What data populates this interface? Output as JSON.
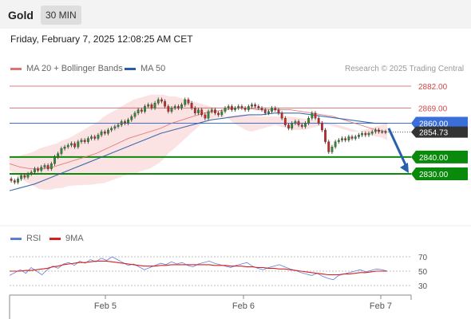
{
  "header": {
    "symbol": "Gold",
    "interval": "30 MIN"
  },
  "timestamp": "Friday, February 7, 2025 12:08:25 AM CET",
  "legend": {
    "ma20_label": "MA 20 + Bollinger Bands",
    "ma50_label": "MA 50",
    "rsi_label": "RSI",
    "ma9_label": "9MA"
  },
  "credit": "Research © 2025 Trading Central",
  "colors": {
    "ma20": "#e07272",
    "ma50": "#2b5aa8",
    "rsi": "#5b7fd6",
    "rsi_ma": "#d62020",
    "bullish": "#2e8b2e",
    "bearish": "#c62828",
    "support": "#0a8a0a",
    "resistance": "#d04848",
    "pivot": "#3a6ed8",
    "arrow": "#2a5fae"
  },
  "chart_data": [
    {
      "type": "candlestick",
      "x_ticks": [
        "Feb 5",
        "Feb 6",
        "Feb 7"
      ],
      "ylim": [
        2820,
        2890
      ],
      "current_price": "2854.73",
      "levels": [
        {
          "value": 2882.0,
          "label": "2882.00",
          "kind": "resistance"
        },
        {
          "value": 2869.0,
          "label": "2869.00",
          "kind": "resistance"
        },
        {
          "value": 2860.0,
          "label": "2860.00",
          "kind": "pivot"
        },
        {
          "value": 2840.0,
          "label": "2840.00",
          "kind": "support"
        },
        {
          "value": 2830.0,
          "label": "2830.00",
          "kind": "support"
        }
      ],
      "closes": [
        2826,
        2825,
        2827,
        2829,
        2828,
        2830,
        2831,
        2833,
        2832,
        2834,
        2835,
        2833,
        2836,
        2840,
        2842,
        2845,
        2846,
        2847,
        2848,
        2846,
        2849,
        2850,
        2849,
        2851,
        2852,
        2851,
        2853,
        2855,
        2854,
        2856,
        2857,
        2858,
        2859,
        2861,
        2860,
        2862,
        2864,
        2866,
        2868,
        2867,
        2870,
        2871,
        2869,
        2872,
        2874,
        2873,
        2870,
        2867,
        2869,
        2870,
        2869,
        2871,
        2874,
        2872,
        2869,
        2866,
        2868,
        2865,
        2863,
        2867,
        2868,
        2866,
        2865,
        2867,
        2869,
        2870,
        2868,
        2869,
        2870,
        2869,
        2868,
        2870,
        2871,
        2870,
        2869,
        2868,
        2866,
        2867,
        2869,
        2868,
        2866,
        2863,
        2859,
        2857,
        2860,
        2861,
        2859,
        2858,
        2860,
        2863,
        2866,
        2863,
        2860,
        2856,
        2849,
        2843,
        2846,
        2849,
        2850,
        2851,
        2850,
        2852,
        2851,
        2852,
        2853,
        2854,
        2853,
        2854,
        2855,
        2856,
        2855,
        2855,
        2854.73
      ],
      "bb_upper": [
        2840,
        2840,
        2841,
        2842,
        2843,
        2845,
        2846,
        2847,
        2848,
        2850,
        2851,
        2853,
        2855,
        2857,
        2859,
        2861,
        2864,
        2866,
        2868,
        2870,
        2872,
        2874,
        2875,
        2876,
        2877,
        2877,
        2877,
        2876,
        2876,
        2875,
        2874,
        2873,
        2872,
        2871,
        2870,
        2868,
        2866,
        2863,
        2860,
        2858,
        2856,
        2855,
        2856,
        2857,
        2858,
        2859,
        2858,
        2857,
        2856,
        2856,
        2856,
        2857,
        2858,
        2859,
        2859,
        2858,
        2857,
        2856,
        2855,
        2855,
        2856,
        2857,
        2858,
        2859,
        2860
      ],
      "series": [
        {
          "name": "MA 20",
          "values": [
            2836,
            2834,
            2833,
            2833,
            2834,
            2836,
            2838,
            2840,
            2842,
            2845,
            2848,
            2851,
            2853,
            2855,
            2857,
            2860,
            2862,
            2864,
            2866,
            2867,
            2868,
            2869,
            2869,
            2868,
            2868,
            2868,
            2868,
            2867,
            2866,
            2865,
            2864,
            2862,
            2860,
            2858,
            2856,
            2855
          ]
        },
        {
          "name": "MA 50",
          "values": [
            2820,
            2822,
            2824,
            2827,
            2830,
            2833,
            2836,
            2839,
            2842,
            2845,
            2848,
            2851,
            2854,
            2856,
            2858,
            2860,
            2862,
            2863,
            2864,
            2865,
            2865,
            2866,
            2866,
            2866,
            2865,
            2864,
            2863,
            2862,
            2861,
            2860,
            2860
          ]
        }
      ]
    },
    {
      "type": "line",
      "y_ticks": [
        70,
        50,
        30
      ],
      "ylim": [
        20,
        80
      ],
      "series": [
        {
          "name": "RSI",
          "values": [
            44,
            48,
            52,
            47,
            55,
            50,
            45,
            52,
            57,
            54,
            60,
            62,
            58,
            64,
            61,
            66,
            63,
            68,
            65,
            70,
            66,
            62,
            58,
            60,
            56,
            52,
            55,
            58,
            61,
            59,
            63,
            60,
            62,
            58,
            56,
            60,
            62,
            64,
            61,
            59,
            57,
            55,
            58,
            60,
            62,
            57,
            54,
            52,
            55,
            57,
            59,
            56,
            53,
            51,
            48,
            46,
            44,
            47,
            43,
            40,
            38,
            44,
            46,
            48,
            50,
            52,
            49,
            51,
            53,
            52,
            50
          ]
        },
        {
          "name": "9MA",
          "values": [
            50,
            50,
            50,
            51,
            51,
            52,
            53,
            54,
            56,
            57,
            59,
            60,
            61,
            62,
            62,
            63,
            64,
            64,
            64,
            63,
            62,
            61,
            60,
            59,
            58,
            57,
            57,
            57,
            58,
            58,
            59,
            59,
            59,
            59,
            59,
            59,
            59,
            59,
            58,
            58,
            58,
            57,
            57,
            57,
            56,
            56,
            55,
            55,
            54,
            54,
            53,
            53,
            52,
            51,
            50,
            49,
            48,
            47,
            46,
            45,
            45,
            45,
            46,
            46,
            47,
            48,
            48,
            49,
            50,
            50,
            50
          ]
        }
      ]
    }
  ]
}
